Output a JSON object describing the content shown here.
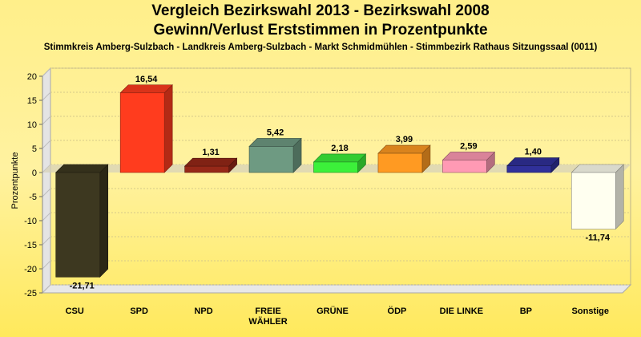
{
  "chart_data": {
    "type": "bar",
    "title_line1": "Vergleich Bezirkswahl 2013 - Bezirkswahl 2008",
    "title_line2": "Gewinn/Verlust Erststimmen in Prozentpunkte",
    "subtitle": "Stimmkreis Amberg-Sulzbach - Landkreis Amberg-Sulzbach - Markt Schmidmühlen - Stimmbezirk Rathaus Sitzungssaal (0011)",
    "ylabel": "Prozentpunkte",
    "xlabel": "",
    "ylim": [
      -25,
      20
    ],
    "yticks": [
      "20",
      "15",
      "10",
      "5",
      "0",
      "-5",
      "-10",
      "-15",
      "-20",
      "-25"
    ],
    "grid": true,
    "legend": "none",
    "categories": [
      "CSU",
      "SPD",
      "NPD",
      "FREIE WÄHLER",
      "GRÜNE",
      "ÖDP",
      "DIE LINKE",
      "BP",
      "Sonstige"
    ],
    "category_lines": [
      [
        "CSU"
      ],
      [
        "SPD"
      ],
      [
        "NPD"
      ],
      [
        "FREIE",
        "WÄHLER"
      ],
      [
        "GRÜNE"
      ],
      [
        "ÖDP"
      ],
      [
        "DIE LINKE"
      ],
      [
        "BP"
      ],
      [
        "Sonstige"
      ]
    ],
    "values": [
      -21.71,
      16.54,
      1.31,
      5.42,
      2.18,
      3.99,
      2.59,
      1.4,
      -11.74
    ],
    "value_labels": [
      "-21,71",
      "16,54",
      "1,31",
      "5,42",
      "2,18",
      "3,99",
      "2,59",
      "1,40",
      "-11,74"
    ],
    "colors": [
      "#3d3820",
      "#ff3c1e",
      "#962818",
      "#6e9a82",
      "#3cf03a",
      "#ff9a22",
      "#ff9ab4",
      "#30309a",
      "#fffff0"
    ]
  }
}
